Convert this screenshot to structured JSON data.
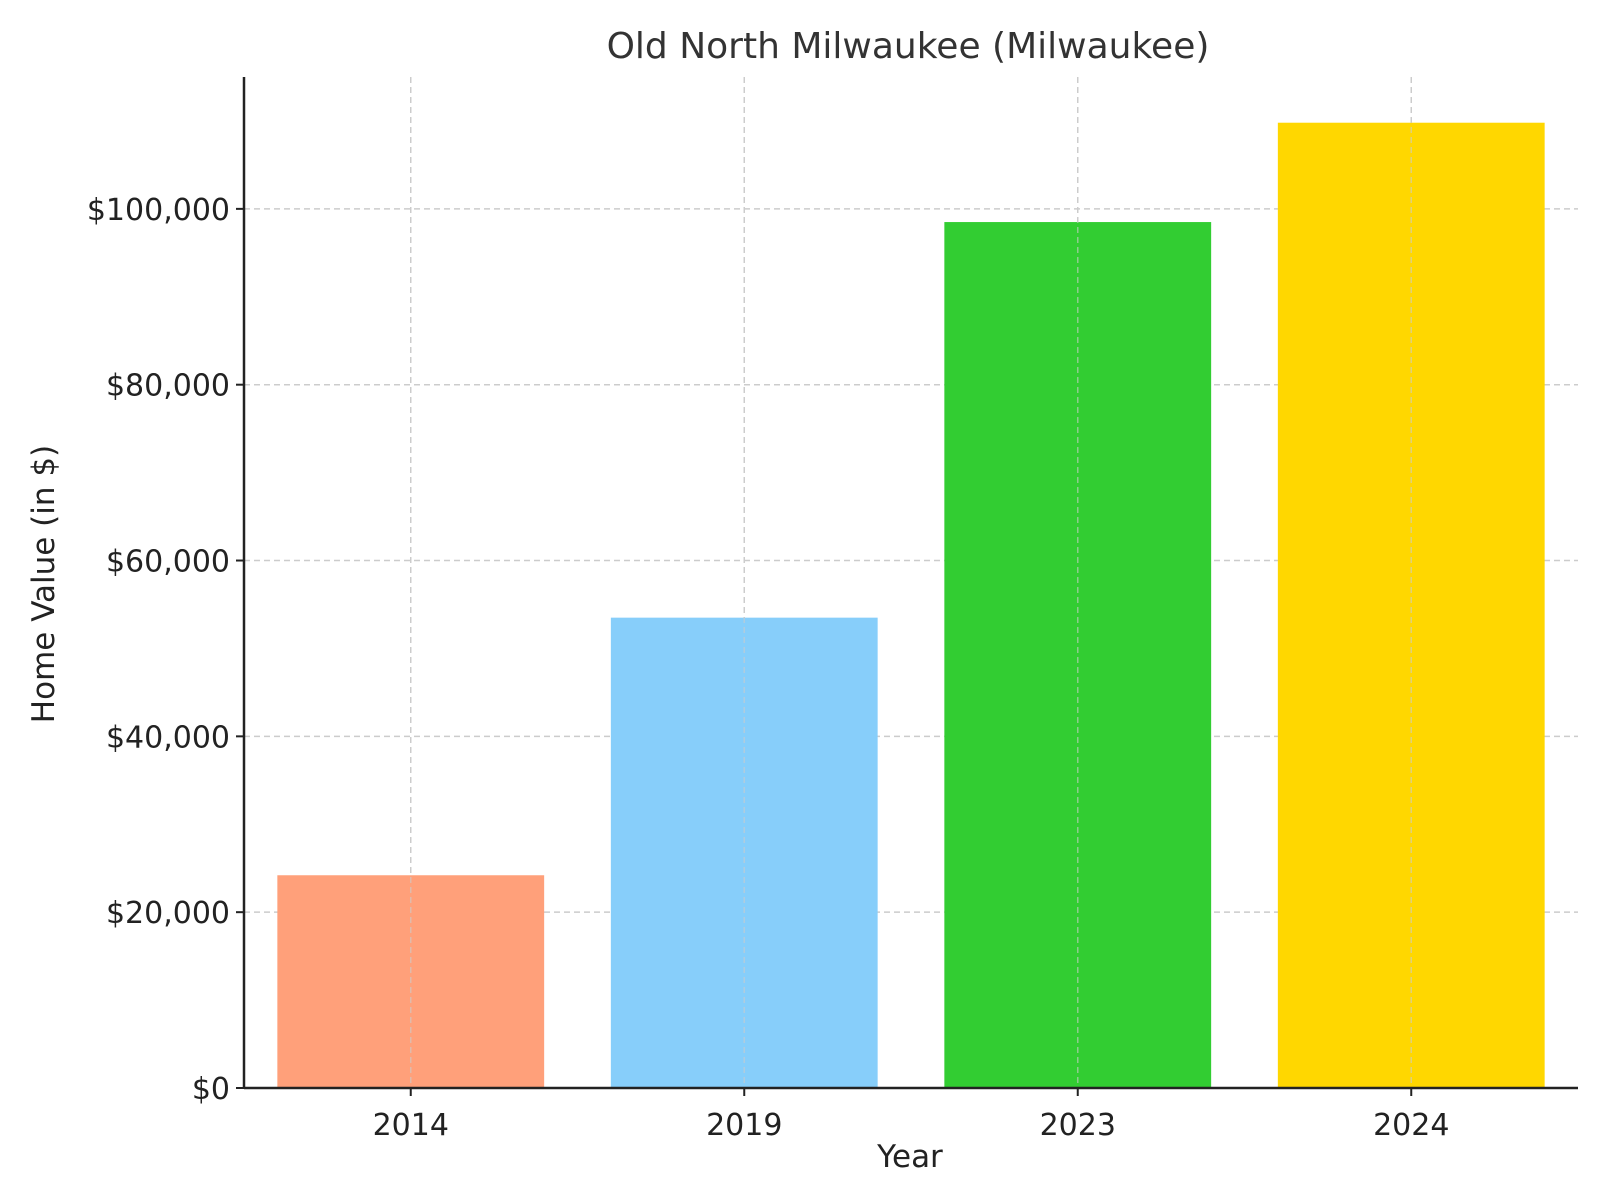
{
  "chart_data": {
    "type": "bar",
    "title": "Old North Milwaukee (Milwaukee)",
    "xlabel": "Year",
    "ylabel": "Home Value (in $)",
    "categories": [
      "2014",
      "2019",
      "2023",
      "2024"
    ],
    "values": [
      24200,
      53500,
      98500,
      109800
    ],
    "colors": [
      "#FFA07A",
      "#87CEFA",
      "#32CD32",
      "#FFD700"
    ],
    "ylim": [
      0,
      115000
    ],
    "yticks": [
      0,
      20000,
      40000,
      60000,
      80000,
      100000
    ],
    "ytick_labels": [
      "$0",
      "$20,000",
      "$40,000",
      "$60,000",
      "$80,000",
      "$100,000"
    ],
    "grid": true,
    "legend": "none"
  }
}
